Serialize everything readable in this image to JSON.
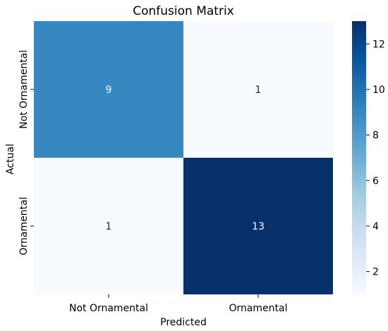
{
  "chart_data": {
    "type": "heatmap",
    "title": "Confusion Matrix",
    "xlabel": "Predicted",
    "ylabel": "Actual",
    "x_categories": [
      "Not Ornamental",
      "Ornamental"
    ],
    "y_categories": [
      "Not Ornamental",
      "Ornamental"
    ],
    "values": [
      [
        9,
        1
      ],
      [
        1,
        13
      ]
    ],
    "colormap": "Blues",
    "colorbar": {
      "min": 1,
      "max": 13,
      "ticks": [
        2,
        4,
        6,
        8,
        10,
        12
      ],
      "low_color": "#f7fbff",
      "high_color": "#08306b"
    },
    "annotations": true
  }
}
